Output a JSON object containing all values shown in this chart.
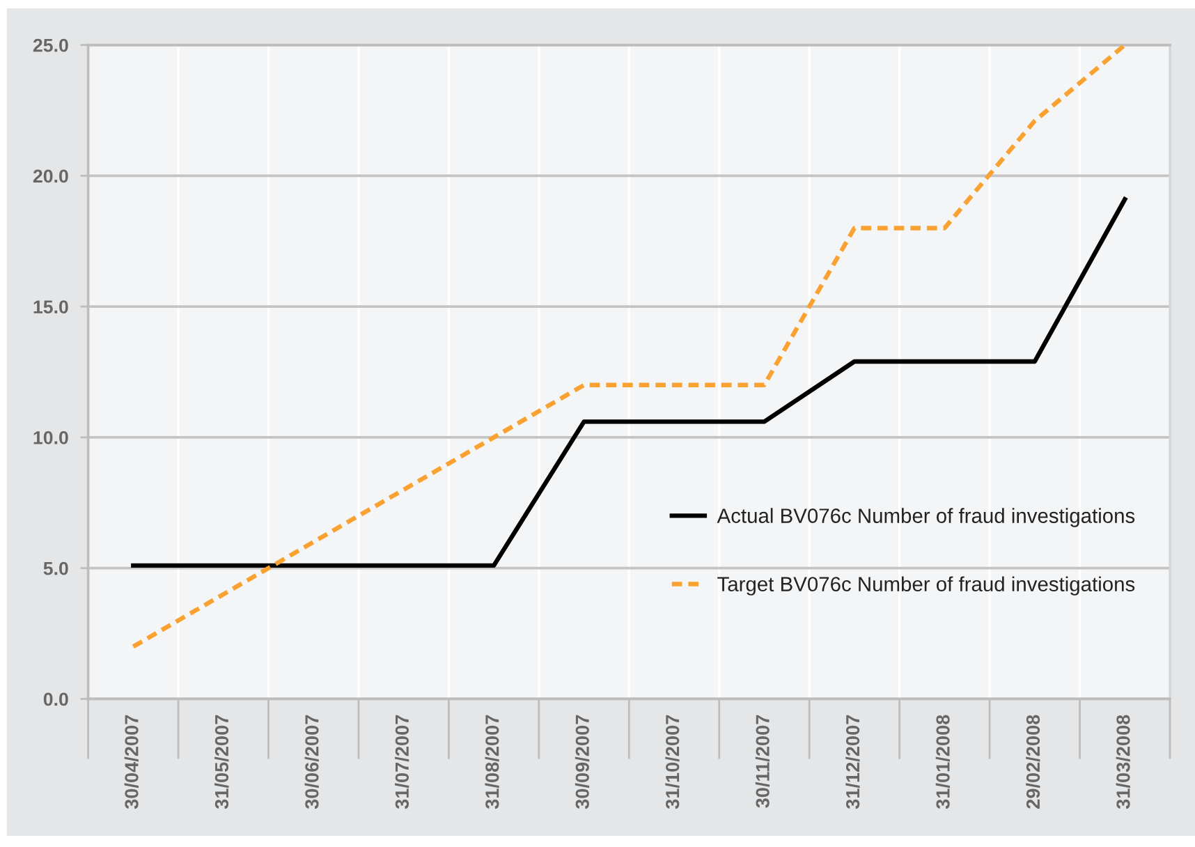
{
  "chart_data": {
    "type": "line",
    "categories": [
      "30/04/2007",
      "31/05/2007",
      "30/06/2007",
      "31/07/2007",
      "31/08/2007",
      "30/09/2007",
      "31/10/2007",
      "30/11/2007",
      "31/12/2007",
      "31/01/2008",
      "29/02/2008",
      "31/03/2008"
    ],
    "series": [
      {
        "name": "Actual BV076c Number of fraud investigations",
        "color": "#000000",
        "line_style": "solid",
        "values": [
          5.1,
          5.1,
          5.1,
          5.1,
          5.1,
          10.6,
          10.6,
          10.6,
          12.9,
          12.9,
          12.9,
          19.1
        ]
      },
      {
        "name": "Target BV076c Number of fraud investigations",
        "color": "#f9a232",
        "line_style": "dashed",
        "values": [
          2.0,
          4.0,
          6.0,
          8.0,
          10.0,
          12.0,
          12.0,
          12.0,
          18.0,
          18.0,
          22.1,
          25.0
        ]
      }
    ],
    "ylim": [
      0,
      25
    ],
    "yticks": [
      {
        "value": 0,
        "label": "0.0"
      },
      {
        "value": 5,
        "label": "5.0"
      },
      {
        "value": 10,
        "label": "10.0"
      },
      {
        "value": 15,
        "label": "15.0"
      },
      {
        "value": 20,
        "label": "20.0"
      },
      {
        "value": 25,
        "label": "25.0"
      }
    ],
    "grid": true,
    "legend": "lower right"
  }
}
